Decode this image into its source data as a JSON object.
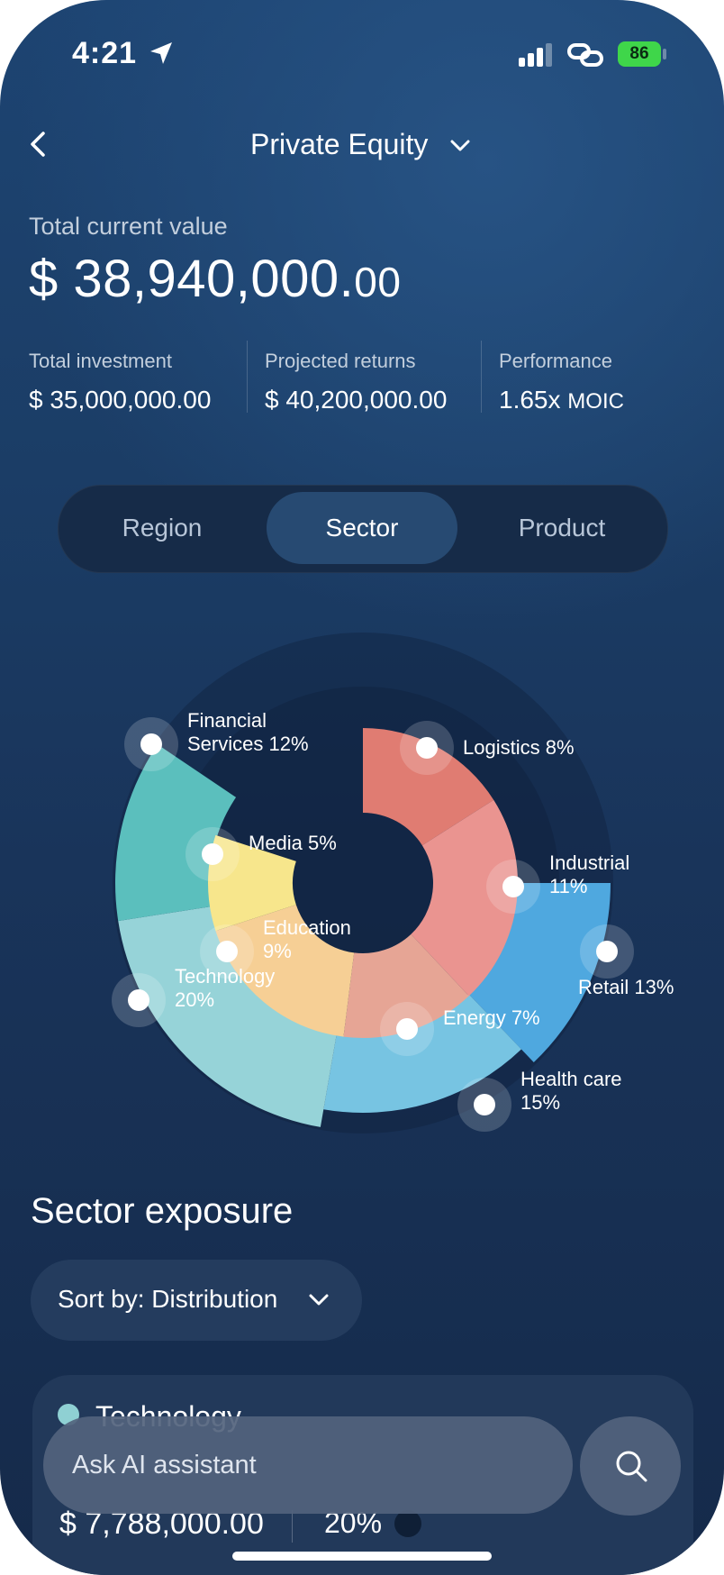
{
  "status": {
    "time": "4:21",
    "battery": "86"
  },
  "header": {
    "title": "Private Equity"
  },
  "summary": {
    "tcv_label": "Total current value",
    "tcv_main": "$ 38,940,000.",
    "tcv_cents": "00",
    "stats": [
      {
        "label": "Total investment",
        "value": "$ 35,000,000.00",
        "unit": ""
      },
      {
        "label": "Projected returns",
        "value": "$ 40,200,000.00",
        "unit": ""
      },
      {
        "label": "Performance",
        "value": "1.65x ",
        "unit": "MOIC"
      }
    ]
  },
  "tabs": [
    {
      "label": "Region",
      "active": false
    },
    {
      "label": "Sector",
      "active": true
    },
    {
      "label": "Product",
      "active": false
    }
  ],
  "chart_data": {
    "type": "pie",
    "outer_ring": [
      {
        "name": "Retail",
        "value": 13,
        "line1": "Retail 13%",
        "line2": "",
        "color": "#4fa8df"
      },
      {
        "name": "Health care",
        "value": 15,
        "line1": "Health care",
        "line2": "15%",
        "color": "#77c4e2"
      },
      {
        "name": "Technology",
        "value": 20,
        "line1": "Technology",
        "line2": "20%",
        "color": "#96d3d8"
      },
      {
        "name": "Financial Services",
        "value": 12,
        "line1": "Financial",
        "line2": "Services 12%",
        "color": "#5bbfbd"
      }
    ],
    "inner_ring": [
      {
        "name": "Logistics",
        "value": 8,
        "line1": "Logistics 8%",
        "line2": "",
        "color": "#e07c72"
      },
      {
        "name": "Industrial",
        "value": 11,
        "line1": "Industrial",
        "line2": "11%",
        "color": "#ea9490"
      },
      {
        "name": "Energy",
        "value": 7,
        "line1": "Energy 7%",
        "line2": "",
        "color": "#e6a595"
      },
      {
        "name": "Education",
        "value": 9,
        "line1": "Education",
        "line2": "9%",
        "color": "#f6cf95"
      },
      {
        "name": "Media",
        "value": 5,
        "line1": "Media 5%",
        "line2": "",
        "color": "#f7e68c"
      }
    ]
  },
  "exposure": {
    "title": "Sector exposure",
    "sort_label": "Sort by: Distribution",
    "card": {
      "name": "Technology",
      "amount": "$ 7,788,000.00",
      "percent": "20%",
      "color": "#8fd0d3"
    }
  },
  "assistant": {
    "placeholder": "Ask AI assistant"
  }
}
